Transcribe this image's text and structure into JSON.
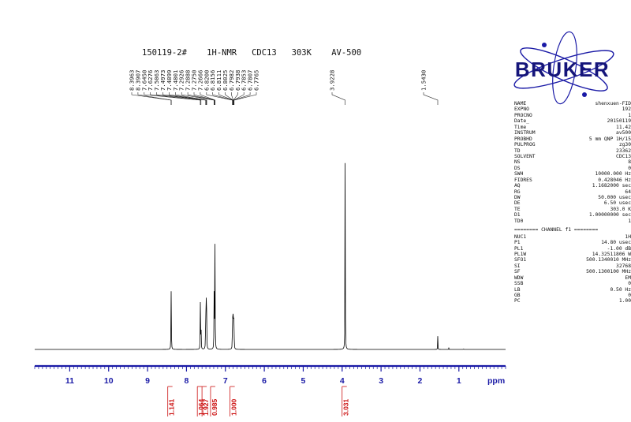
{
  "spectrum_title": "150119-2#    1H-NMR   CDC13   303K    AV-500",
  "logo_text": "BRUKER",
  "colors": {
    "spectrum": "#000000",
    "axis": "#1a1aa6",
    "integral": "#cc1111",
    "logo_text": "#15157a",
    "logo_orbit": "#1a1aa6"
  },
  "chart_data": {
    "type": "line",
    "title": "150119-2#    1H-NMR   CDC13   303K    AV-500",
    "xlabel": "ppm",
    "ylabel": "",
    "xlim": [
      11.9,
      -0.2
    ],
    "x_reversed": true,
    "x_ticks": [
      11,
      10,
      9,
      8,
      7,
      6,
      5,
      4,
      3,
      2,
      1
    ],
    "x_tick_labels": [
      "11",
      "10",
      "9",
      "8",
      "7",
      "6",
      "5",
      "4",
      "3",
      "2",
      "1"
    ],
    "grid": false,
    "peaks": [
      {
        "ppm": 8.3963,
        "height": 0.224
      },
      {
        "ppm": 8.3907,
        "height": 0.2
      },
      {
        "ppm": 7.645,
        "height": 0.218
      },
      {
        "ppm": 7.6276,
        "height": 0.205
      },
      {
        "ppm": 7.5063,
        "height": 0.225
      },
      {
        "ppm": 7.4973,
        "height": 0.175
      },
      {
        "ppm": 7.4899,
        "height": 0.198
      },
      {
        "ppm": 7.4801,
        "height": 0.15
      },
      {
        "ppm": 7.2926,
        "height": 0.14
      },
      {
        "ppm": 7.2888,
        "height": 0.16
      },
      {
        "ppm": 7.275,
        "height": 0.168
      },
      {
        "ppm": 7.2666,
        "height": 0.576
      },
      {
        "ppm": 6.82,
        "height": 0.07
      },
      {
        "ppm": 6.8156,
        "height": 0.075
      },
      {
        "ppm": 6.8111,
        "height": 0.08
      },
      {
        "ppm": 6.8025,
        "height": 0.085
      },
      {
        "ppm": 6.7982,
        "height": 0.09
      },
      {
        "ppm": 6.7938,
        "height": 0.085
      },
      {
        "ppm": 6.7853,
        "height": 0.08
      },
      {
        "ppm": 6.7807,
        "height": 0.075
      },
      {
        "ppm": 6.7765,
        "height": 0.065
      },
      {
        "ppm": 3.9228,
        "height": 1.0
      },
      {
        "ppm": 1.543,
        "height": 0.055
      },
      {
        "ppm": 1.26,
        "height": 0.006
      },
      {
        "ppm": 0.88,
        "height": 0.004
      }
    ],
    "peak_labels": [
      "8.3963",
      "8.3907",
      "7.6450",
      "7.6276",
      "7.5063",
      "7.4973",
      "7.4899",
      "7.4801",
      "7.2926",
      "7.2888",
      "7.2750",
      "7.2666",
      "6.8200",
      "6.8156",
      "6.8111",
      "6.8025",
      "6.7982",
      "6.7938",
      "6.7853",
      "6.7807",
      "6.7765",
      "3.9228",
      "1.5430"
    ],
    "integrals": [
      {
        "ppm": 8.4,
        "value": "1.141"
      },
      {
        "ppm": 7.64,
        "value": "1.064"
      },
      {
        "ppm": 7.52,
        "value": "1.927"
      },
      {
        "ppm": 7.3,
        "value": "0.985"
      },
      {
        "ppm": 6.8,
        "value": "1.000"
      },
      {
        "ppm": 3.92,
        "value": "3.031"
      }
    ]
  },
  "params_top": [
    {
      "key": "NAME",
      "value": "shenxuen-FID"
    },
    {
      "key": "EXPNO",
      "value": "192"
    },
    {
      "key": "PROCNO",
      "value": "1"
    },
    {
      "key": "Date_",
      "value": "20150119"
    },
    {
      "key": "Time",
      "value": "11.42"
    },
    {
      "key": "INSTRUM",
      "value": "av500"
    },
    {
      "key": "PROBHD",
      "value": "5 mm QNP 1H/15"
    },
    {
      "key": "PULPROG",
      "value": "zg30"
    },
    {
      "key": "TD",
      "value": "23362"
    },
    {
      "key": "SOLVENT",
      "value": "CDC13"
    },
    {
      "key": "NS",
      "value": "8"
    },
    {
      "key": "DS",
      "value": "0"
    },
    {
      "key": "SWH",
      "value": "10000.000 Hz"
    },
    {
      "key": "FIDRES",
      "value": "0.428046 Hz"
    },
    {
      "key": "AQ",
      "value": "1.1682000 sec"
    },
    {
      "key": "RG",
      "value": "64"
    },
    {
      "key": "DW",
      "value": "50.000 usec"
    },
    {
      "key": "DE",
      "value": "6.50 usec"
    },
    {
      "key": "TE",
      "value": "303.0 K"
    },
    {
      "key": "D1",
      "value": "1.00000000 sec"
    },
    {
      "key": "TD0",
      "value": "1"
    }
  ],
  "channel_header": "======== CHANNEL f1 ========",
  "params_channel": [
    {
      "key": "NUC1",
      "value": "1H"
    },
    {
      "key": "P1",
      "value": "14.80 usec"
    },
    {
      "key": "PL1",
      "value": "-1.00 dB"
    },
    {
      "key": "PL1W",
      "value": "14.32511806 W"
    },
    {
      "key": "SFO1",
      "value": "500.1340010 MHz"
    },
    {
      "key": "SI",
      "value": "32768"
    },
    {
      "key": "SF",
      "value": "500.1300100 MHz"
    },
    {
      "key": "WDW",
      "value": "EM"
    },
    {
      "key": "SSB",
      "value": "0"
    },
    {
      "key": "LB",
      "value": "0.50 Hz"
    },
    {
      "key": "GB",
      "value": "0"
    },
    {
      "key": "PC",
      "value": "1.00"
    }
  ]
}
